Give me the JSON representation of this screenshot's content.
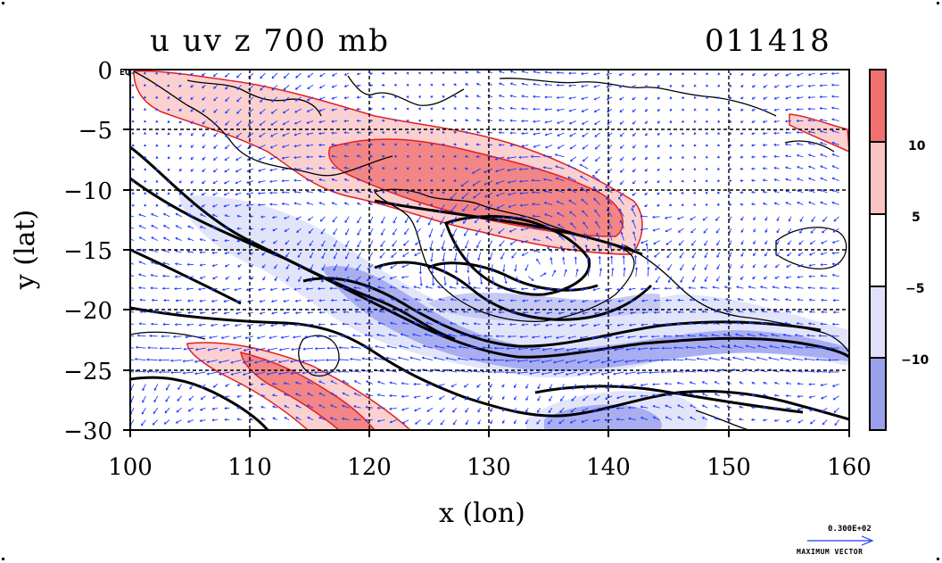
{
  "title": {
    "left": "u uv z 700 mb",
    "right": "011418"
  },
  "axes": {
    "xlabel": "x (lon)",
    "ylabel": "y (lat)",
    "x_ticks": [
      "100",
      "110",
      "120",
      "130",
      "140",
      "150",
      "160"
    ],
    "y_ticks": [
      "0",
      "−5",
      "−10",
      "−15",
      "−20",
      "−25",
      "−30"
    ],
    "y_first_suffix": "EQ",
    "xlim": [
      100,
      160
    ],
    "ylim": [
      -30,
      0
    ]
  },
  "colorbar": {
    "labels": [
      "10",
      "5",
      "−5",
      "−10"
    ],
    "bands": [
      "#f07070",
      "#f8c4c4",
      "#ffffff",
      "#e0e0f8",
      "#9aa0ec"
    ]
  },
  "vector_legend": {
    "value": "0.300E+02",
    "label": "MAXIMUM VECTOR"
  },
  "colors": {
    "positive_contour": "#e02020",
    "vector": "#1e3cff",
    "height_contour": "#000000",
    "coast": "#000000"
  }
}
